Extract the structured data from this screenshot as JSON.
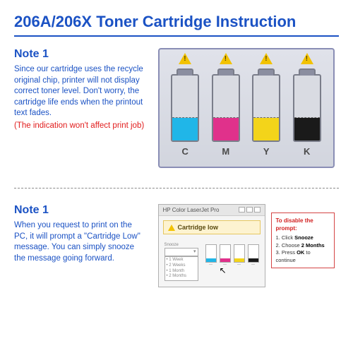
{
  "title": {
    "text": "206A/206X Toner Cartridge Instruction",
    "color": "#1b52c4",
    "fontsize": 22,
    "underline_color": "#1b52c4"
  },
  "section1": {
    "heading": "Note 1",
    "heading_color": "#1b52c4",
    "body": "Since our cartridge uses the recycle original chip, printer will not display correct toner level. Don't worry, the cartridge life ends when the printout text  fades.",
    "body_color": "#1b52c4",
    "warning": "(The indication won't affect print job)",
    "warning_color": "#e11b1b",
    "panel": {
      "bg_top": "#e0e2ea",
      "bg_bottom": "#d2d5de",
      "border": "#8a8eb5",
      "cartridges": [
        {
          "label": "C",
          "color": "#20b6e8",
          "fill_pct": 35,
          "dash_pct": 35,
          "alert": true
        },
        {
          "label": "M",
          "color": "#e0318b",
          "fill_pct": 35,
          "dash_pct": 35,
          "alert": true
        },
        {
          "label": "Y",
          "color": "#f3d41a",
          "fill_pct": 35,
          "dash_pct": 35,
          "alert": true
        },
        {
          "label": "K",
          "color": "#1a1a1a",
          "fill_pct": 35,
          "dash_pct": 35,
          "alert": true
        }
      ],
      "alert_triangle_color": "#f2c200"
    }
  },
  "divider": {
    "style": "dashed",
    "color": "#8a8a8a"
  },
  "section2": {
    "heading": "Note 1",
    "heading_color": "#1b52c4",
    "body": "When you request to print on the PC, it will prompt a \"Cartridge Low\" message. You can simply snooze the message going forward.",
    "body_color": "#1b52c4",
    "dialog": {
      "window_title": "HP Color LaserJet Pro",
      "banner_text": "Cartridge low",
      "banner_bg": "#fdf3d0",
      "banner_border": "#e6c760",
      "dropdown_label": "Snooze",
      "options": [
        "1 Week",
        "2 Weeks",
        "1 Month",
        "2 Months"
      ],
      "levels": [
        {
          "color": "#20b6e8",
          "pct": 22
        },
        {
          "color": "#e0318b",
          "pct": 22
        },
        {
          "color": "#f3d41a",
          "pct": 22
        },
        {
          "color": "#1a1a1a",
          "pct": 22
        }
      ]
    },
    "instruct": {
      "border": "#d44444",
      "heading": "To disable the prompt:",
      "heading_color": "#d22222",
      "step1_pre": "1. Click ",
      "step1_b": "Snooze",
      "step2_pre": "2. Choose ",
      "step2_b": "2 Months",
      "step3_pre": "3. Press ",
      "step3_b": "OK",
      "step3_post": " to continue"
    }
  }
}
